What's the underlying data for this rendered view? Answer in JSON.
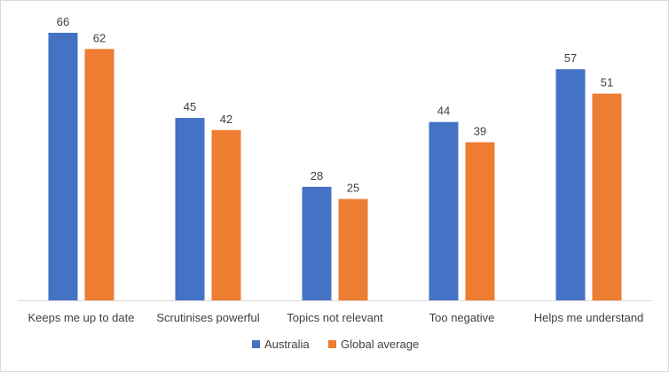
{
  "chart_data": {
    "type": "bar",
    "title": "",
    "xlabel": "",
    "ylabel": "",
    "ylim": [
      0,
      70
    ],
    "grid": false,
    "legend_position": "bottom",
    "categories": [
      "Keeps me up to date",
      "Scrutinises powerful",
      "Topics not relevant",
      "Too negative",
      "Helps me understand"
    ],
    "series": [
      {
        "name": "Australia",
        "color": "#4472C4",
        "values": [
          66,
          45,
          28,
          44,
          57
        ]
      },
      {
        "name": "Global average",
        "color": "#ED7D31",
        "values": [
          62,
          42,
          25,
          39,
          51
        ]
      }
    ]
  }
}
